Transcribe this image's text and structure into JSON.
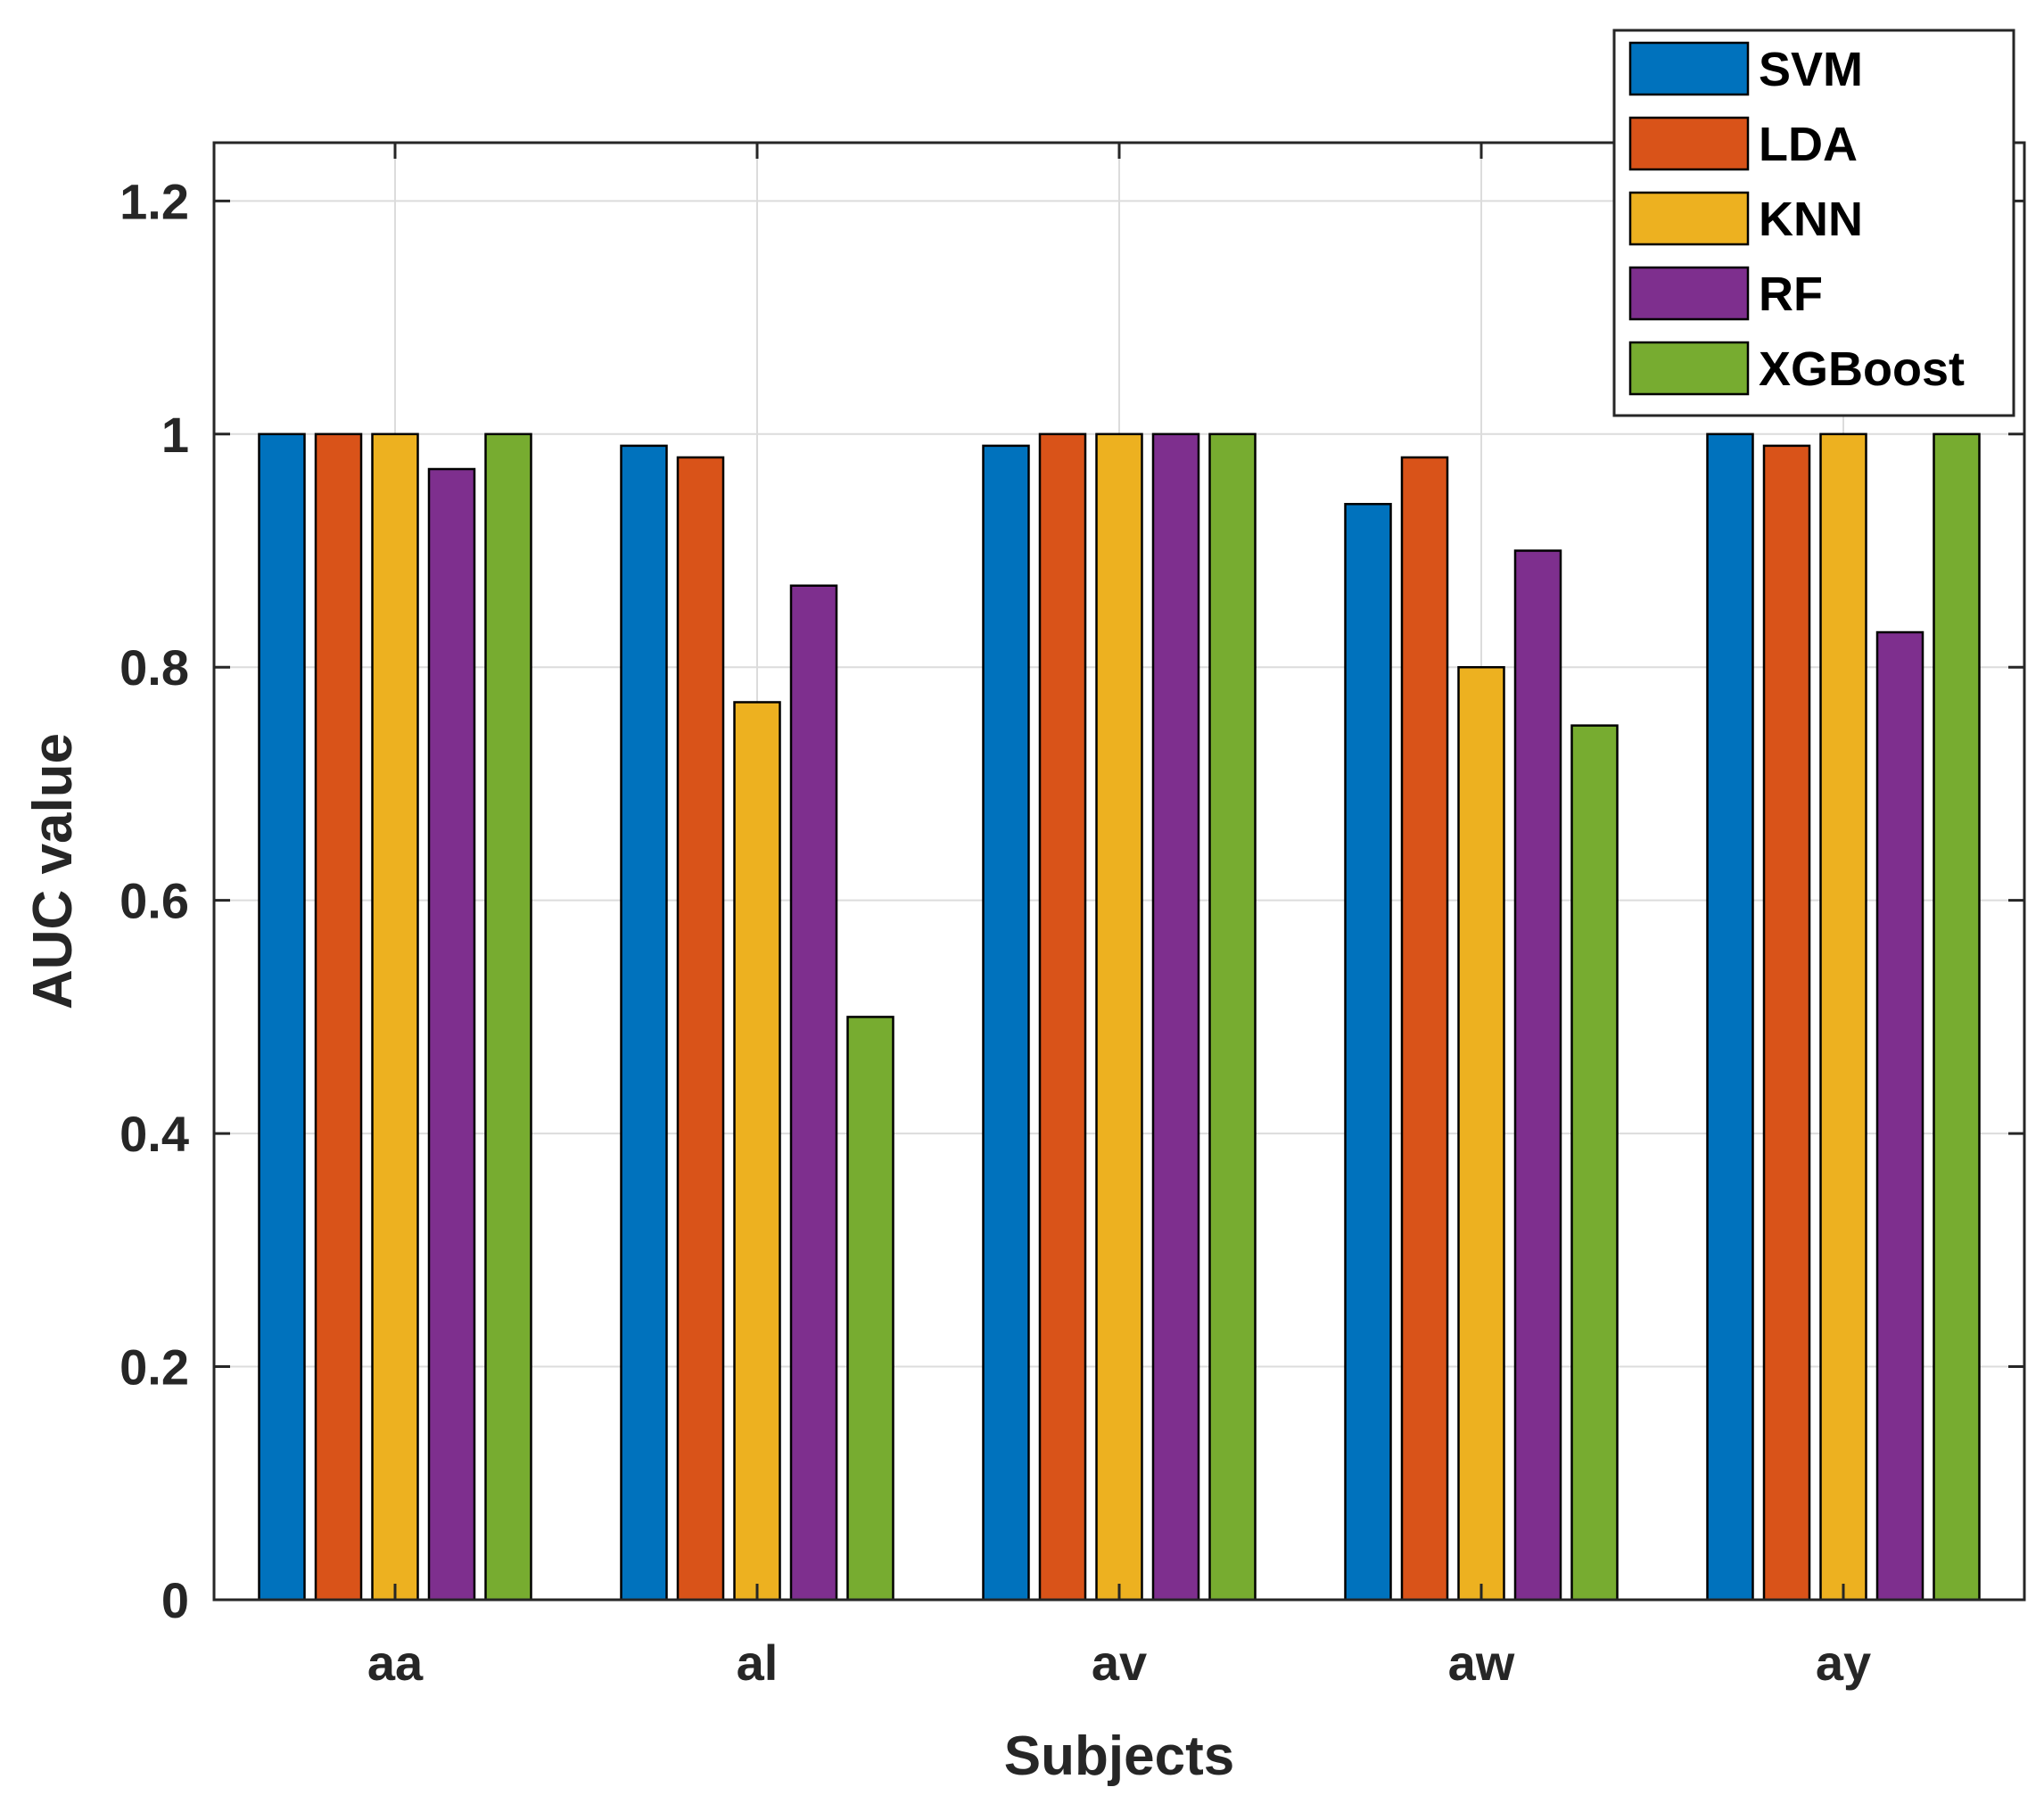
{
  "chart_data": {
    "type": "bar",
    "title": "",
    "xlabel": "Subjects",
    "ylabel": "AUC value",
    "categories": [
      "aa",
      "al",
      "av",
      "aw",
      "ay"
    ],
    "ylim": [
      0,
      1.25
    ],
    "yticks": [
      0,
      0.2,
      0.4,
      0.6,
      0.8,
      1,
      1.2
    ],
    "ytick_labels": [
      "0",
      "0.2",
      "0.4",
      "0.6",
      "0.8",
      "1",
      "1.2"
    ],
    "grid": true,
    "legend_position": "top-right",
    "series": [
      {
        "name": "SVM",
        "color": "#0072BD",
        "values": [
          1.0,
          0.99,
          0.99,
          0.94,
          1.0
        ]
      },
      {
        "name": "LDA",
        "color": "#D95319",
        "values": [
          1.0,
          0.98,
          1.0,
          0.98,
          0.99
        ]
      },
      {
        "name": "KNN",
        "color": "#EDB120",
        "values": [
          1.0,
          0.77,
          1.0,
          0.8,
          1.0
        ]
      },
      {
        "name": "RF",
        "color": "#7E2F8E",
        "values": [
          0.97,
          0.87,
          1.0,
          0.9,
          0.83
        ]
      },
      {
        "name": "XGBoost",
        "color": "#77AC30",
        "values": [
          1.0,
          0.5,
          1.0,
          0.75,
          1.0
        ]
      }
    ]
  }
}
